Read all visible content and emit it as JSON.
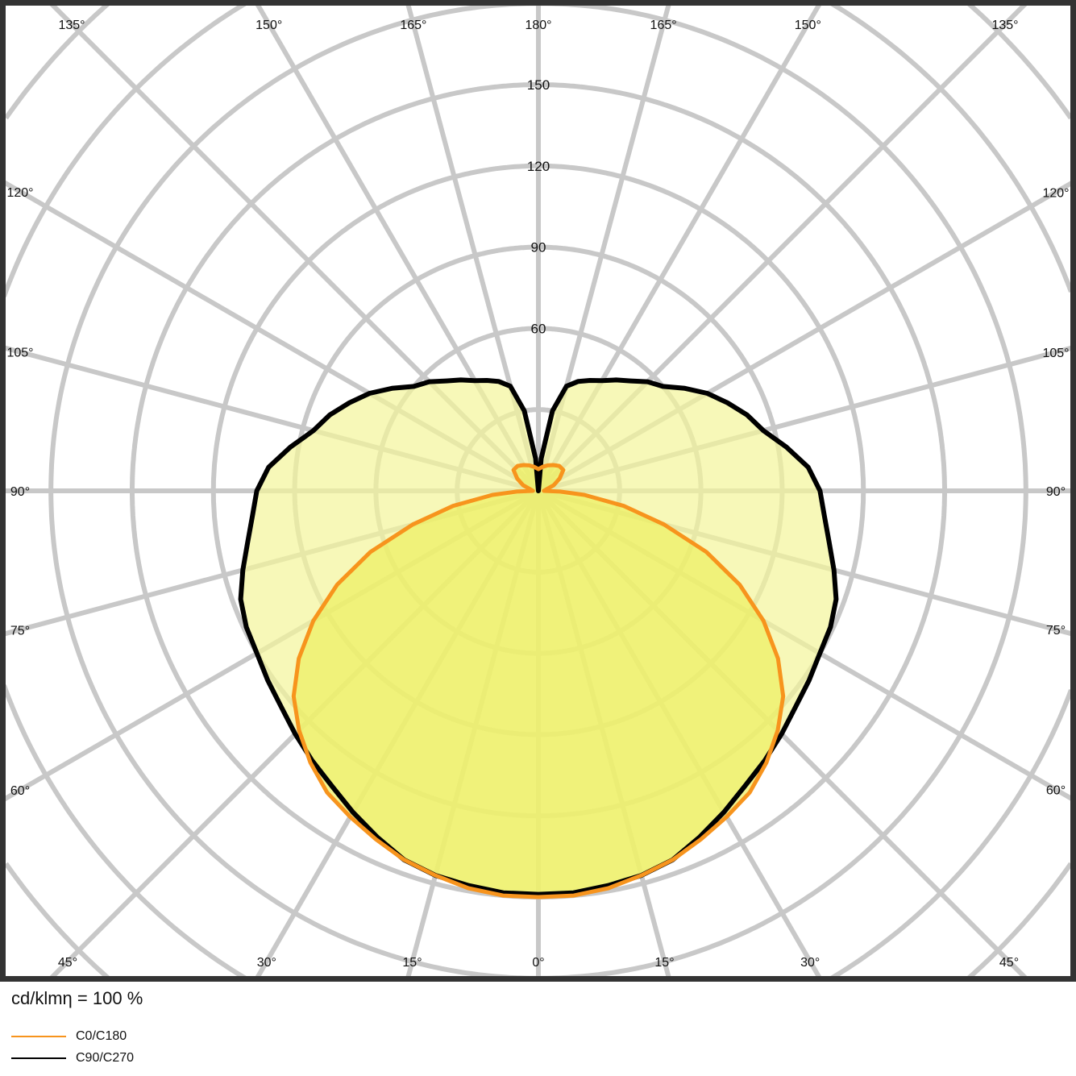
{
  "chart_data": {
    "type": "polar",
    "title": "",
    "unit_label": "cd/klmη = 100 %",
    "radial_ticks": [
      30,
      60,
      90,
      120,
      150,
      180,
      210,
      240,
      270,
      300
    ],
    "radial_tick_labels": [
      "60",
      "90",
      "120",
      "150"
    ],
    "angle_tick_labels": [
      {
        "angle": -135,
        "label": "135°"
      },
      {
        "angle": -150,
        "label": "150°"
      },
      {
        "angle": -165,
        "label": "165°"
      },
      {
        "angle": 180,
        "label": "180°"
      },
      {
        "angle": 165,
        "label": "165°"
      },
      {
        "angle": 150,
        "label": "150°"
      },
      {
        "angle": 135,
        "label": "135°"
      },
      {
        "angle": -120,
        "label": "120°"
      },
      {
        "angle": -105,
        "label": "105°"
      },
      {
        "angle": -90,
        "label": "90°"
      },
      {
        "angle": -75,
        "label": "75°"
      },
      {
        "angle": -60,
        "label": "60°"
      },
      {
        "angle": 120,
        "label": "120°"
      },
      {
        "angle": 105,
        "label": "105°"
      },
      {
        "angle": 90,
        "label": "90°"
      },
      {
        "angle": 75,
        "label": "75°"
      },
      {
        "angle": 60,
        "label": "60°"
      },
      {
        "angle": -45,
        "label": "45°"
      },
      {
        "angle": -30,
        "label": "30°"
      },
      {
        "angle": -15,
        "label": "15°"
      },
      {
        "angle": 0,
        "label": "0°"
      },
      {
        "angle": 15,
        "label": "15°"
      },
      {
        "angle": 30,
        "label": "30°"
      },
      {
        "angle": 45,
        "label": "45°"
      }
    ],
    "grid": true,
    "legend_position": "bottom-left",
    "series": [
      {
        "name": "C90/C270",
        "color": "#000000",
        "fill": "#f3f59a",
        "gamma": [
          0,
          5,
          10,
          15,
          20,
          25,
          30,
          35,
          40,
          45,
          50,
          55,
          60,
          65,
          70,
          75,
          80,
          85,
          90,
          95,
          100,
          105,
          110,
          115,
          120,
          125,
          130,
          135,
          140,
          145,
          150,
          155,
          160,
          165,
          170,
          175,
          180
        ],
        "values": [
          149,
          149,
          148,
          147,
          145,
          141,
          137,
          133,
          130,
          127,
          124,
          122,
          120,
          119,
          117,
          113,
          109,
          106,
          104,
          100,
          93,
          86,
          82,
          77,
          72,
          66,
          60,
          57,
          53,
          50,
          47,
          45,
          43,
          40,
          30,
          12,
          0
        ]
      },
      {
        "name": "C0/C180",
        "color": "#f7941d",
        "fill": "#ecef60",
        "gamma": [
          0,
          5,
          10,
          15,
          20,
          25,
          30,
          35,
          40,
          45,
          50,
          55,
          60,
          65,
          70,
          75,
          80,
          85,
          88,
          90,
          100,
          110,
          120,
          130,
          140,
          150,
          160,
          170,
          180
        ],
        "values": [
          150,
          150,
          149,
          147,
          145,
          142,
          139,
          136,
          131,
          125,
          118,
          108,
          96,
          82,
          66,
          48,
          32,
          17,
          8,
          2,
          3,
          6,
          9,
          12,
          12,
          11,
          10,
          9,
          8
        ]
      }
    ]
  }
}
